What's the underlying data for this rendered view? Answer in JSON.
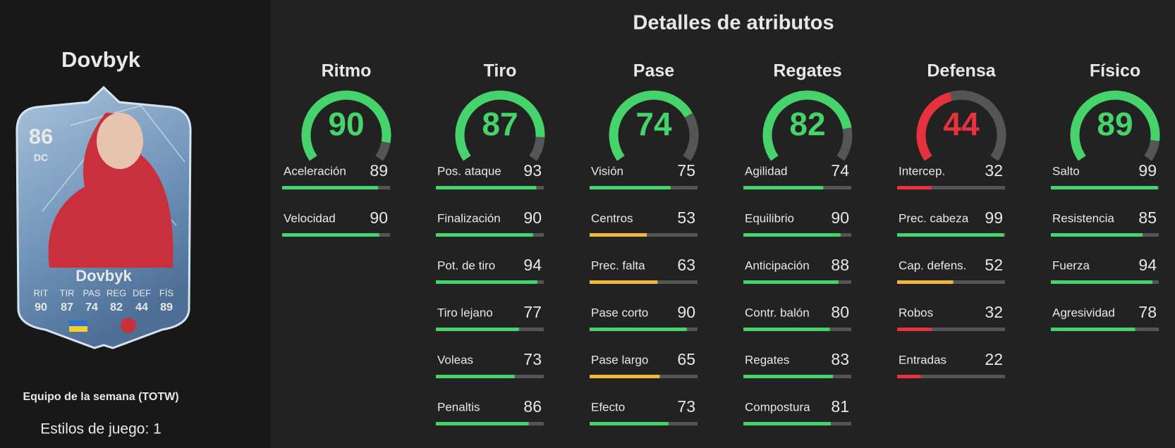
{
  "player": {
    "name": "Dovbyk",
    "rating": 86,
    "position": "DC",
    "card_name": "Dovbyk",
    "card_stats": [
      {
        "label": "RIT",
        "value": 90
      },
      {
        "label": "TIR",
        "value": 87
      },
      {
        "label": "PAS",
        "value": 74
      },
      {
        "label": "REG",
        "value": 82
      },
      {
        "label": "DEF",
        "value": 44
      },
      {
        "label": "FÍS",
        "value": 89
      }
    ],
    "team": "Equipo de la semana (TOTW)",
    "playstyles": "Estilos de juego: 1"
  },
  "details": {
    "title": "Detalles de atributos",
    "range": [
      0,
      100
    ],
    "categories": [
      {
        "name": "Ritmo",
        "value": 90,
        "attributes": [
          {
            "name": "Aceleración",
            "value": 89
          },
          {
            "name": "Velocidad",
            "value": 90
          }
        ]
      },
      {
        "name": "Tiro",
        "value": 87,
        "attributes": [
          {
            "name": "Pos. ataque",
            "value": 93
          },
          {
            "name": "Finalización",
            "value": 90
          },
          {
            "name": "Pot. de tiro",
            "value": 94
          },
          {
            "name": "Tiro lejano",
            "value": 77
          },
          {
            "name": "Voleas",
            "value": 73
          },
          {
            "name": "Penaltis",
            "value": 86
          }
        ]
      },
      {
        "name": "Pase",
        "value": 74,
        "attributes": [
          {
            "name": "Visión",
            "value": 75
          },
          {
            "name": "Centros",
            "value": 53
          },
          {
            "name": "Prec. falta",
            "value": 63
          },
          {
            "name": "Pase corto",
            "value": 90
          },
          {
            "name": "Pase largo",
            "value": 65
          },
          {
            "name": "Efecto",
            "value": 73
          }
        ]
      },
      {
        "name": "Regates",
        "value": 82,
        "attributes": [
          {
            "name": "Agilidad",
            "value": 74
          },
          {
            "name": "Equilibrio",
            "value": 90
          },
          {
            "name": "Anticipación",
            "value": 88
          },
          {
            "name": "Contr. balón",
            "value": 80
          },
          {
            "name": "Regates",
            "value": 83
          },
          {
            "name": "Compostura",
            "value": 81
          }
        ]
      },
      {
        "name": "Defensa",
        "value": 44,
        "attributes": [
          {
            "name": "Intercep.",
            "value": 32
          },
          {
            "name": "Prec. cabeza",
            "value": 99
          },
          {
            "name": "Cap. defens.",
            "value": 52
          },
          {
            "name": "Robos",
            "value": 32
          },
          {
            "name": "Entradas",
            "value": 22
          }
        ]
      },
      {
        "name": "Físico",
        "value": 89,
        "attributes": [
          {
            "name": "Salto",
            "value": 99
          },
          {
            "name": "Resistencia",
            "value": 85
          },
          {
            "name": "Fuerza",
            "value": 94
          },
          {
            "name": "Agresividad",
            "value": 78
          }
        ]
      }
    ]
  }
}
